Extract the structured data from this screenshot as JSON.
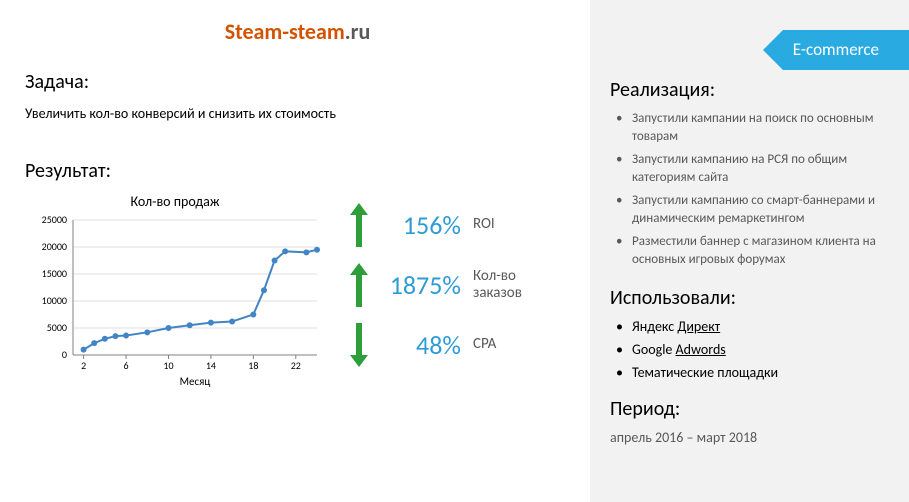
{
  "logo": {
    "part1": "Steam-steam",
    "part2": ".ru"
  },
  "tag": "E-commerce",
  "task": {
    "heading": "Задача:",
    "text": "Увеличить кол-во конверсий и снизить их стоимость"
  },
  "result": {
    "heading": "Результат:",
    "chart": {
      "title": "Кол-во продаж",
      "type": "line",
      "x_ticks": [
        2,
        6,
        10,
        14,
        18,
        22
      ],
      "x_label": "Месяц",
      "y_ticks": [
        0,
        5000,
        10000,
        15000,
        20000,
        25000
      ],
      "ylim": [
        0,
        25000
      ],
      "xlim": [
        1,
        24
      ],
      "points_x": [
        2,
        3,
        4,
        5,
        6,
        8,
        10,
        12,
        14,
        16,
        18,
        19,
        20,
        21,
        23,
        24
      ],
      "points_y": [
        1000,
        2200,
        3000,
        3500,
        3600,
        4200,
        5000,
        5500,
        6000,
        6200,
        7500,
        12000,
        17500,
        19200,
        19000,
        19500
      ],
      "line_color": "#4285c5",
      "marker_color": "#4285c5",
      "grid_color": "#bfbfbf",
      "axis_color": "#808080",
      "tick_font_size": 10,
      "label_font_size": 11,
      "marker_radius": 3
    },
    "metrics": [
      {
        "direction": "up",
        "value": "156%",
        "label": "ROI",
        "arrow_color": "#2e9e3b",
        "value_color": "#2e9bd6"
      },
      {
        "direction": "up",
        "value": "1875%",
        "label": "Кол-во заказов",
        "arrow_color": "#2e9e3b",
        "value_color": "#2e9bd6"
      },
      {
        "direction": "down",
        "value": "48%",
        "label": "CPA",
        "arrow_color": "#2e9e3b",
        "value_color": "#2e9bd6"
      }
    ]
  },
  "realization": {
    "heading": "Реализация:",
    "items": [
      "Запустили кампании на поиск по основным товарам",
      "Запустили кампанию на РСЯ по общим категориям сайта",
      "Запустили кампанию со смарт-баннерами и динамическим ремаркетингом",
      "Разместили баннер с магазином клиента на основных игровых форумах"
    ]
  },
  "tools": {
    "heading": "Использовали:",
    "items": [
      {
        "pre": "Яндекс ",
        "underlined": "Директ"
      },
      {
        "pre": "Google ",
        "underlined": "Adwords"
      },
      {
        "pre": "Тематические площадки",
        "underlined": ""
      }
    ]
  },
  "period": {
    "heading": "Период:",
    "text": "апрель 2016 – март 2018"
  },
  "colors": {
    "tag_bg": "#29abe2",
    "right_bg": "#f2f2f2",
    "logo_orange": "#d35400",
    "text_gray": "#595959"
  }
}
